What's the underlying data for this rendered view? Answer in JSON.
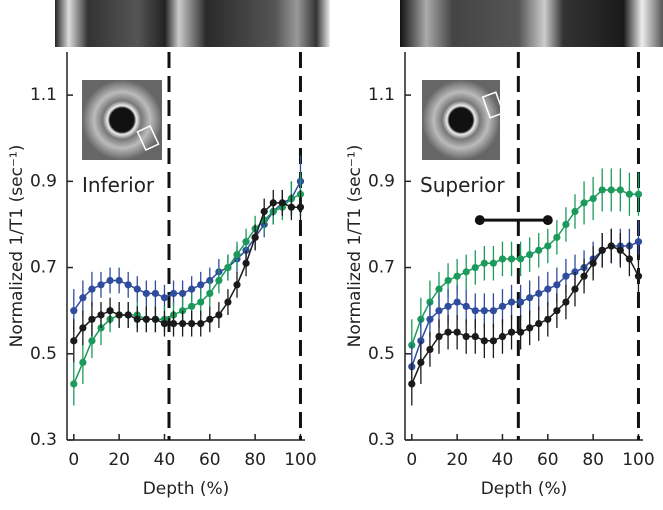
{
  "chart_data": [
    {
      "type": "line",
      "annotation": "Inferior",
      "xlabel": "Depth (%)",
      "ylabel": "Normalized 1/T1 (sec⁻¹)",
      "x": [
        0,
        4,
        8,
        12,
        16,
        20,
        24,
        28,
        32,
        36,
        40,
        44,
        48,
        52,
        56,
        60,
        64,
        68,
        72,
        76,
        80,
        84,
        88,
        92,
        96,
        100
      ],
      "xlim": [
        -3,
        102
      ],
      "xticks": [
        0,
        20,
        40,
        60,
        80,
        100
      ],
      "ylim": [
        0.3,
        1.2
      ],
      "yticks": [
        0.3,
        0.5,
        0.7,
        0.9,
        1.1
      ],
      "vlines": [
        42,
        100
      ],
      "series": [
        {
          "color": "#2f4b9c",
          "values": [
            0.6,
            0.63,
            0.65,
            0.66,
            0.67,
            0.67,
            0.66,
            0.65,
            0.64,
            0.64,
            0.63,
            0.64,
            0.64,
            0.65,
            0.66,
            0.67,
            0.69,
            0.7,
            0.72,
            0.74,
            0.77,
            0.8,
            0.83,
            0.85,
            0.86,
            0.9
          ],
          "errors": [
            0.05,
            0.04,
            0.04,
            0.03,
            0.03,
            0.03,
            0.03,
            0.03,
            0.03,
            0.03,
            0.03,
            0.03,
            0.03,
            0.03,
            0.03,
            0.03,
            0.03,
            0.03,
            0.03,
            0.03,
            0.03,
            0.03,
            0.03,
            0.03,
            0.04,
            0.06
          ]
        },
        {
          "color": "#1c9a5b",
          "values": [
            0.43,
            0.48,
            0.53,
            0.56,
            0.58,
            0.59,
            0.59,
            0.59,
            0.58,
            0.58,
            0.58,
            0.59,
            0.6,
            0.61,
            0.62,
            0.64,
            0.67,
            0.7,
            0.73,
            0.76,
            0.79,
            0.81,
            0.83,
            0.84,
            0.86,
            0.87
          ],
          "errors": [
            0.05,
            0.05,
            0.04,
            0.04,
            0.03,
            0.03,
            0.03,
            0.03,
            0.03,
            0.03,
            0.03,
            0.03,
            0.03,
            0.03,
            0.03,
            0.03,
            0.03,
            0.03,
            0.03,
            0.03,
            0.03,
            0.03,
            0.03,
            0.03,
            0.04,
            0.05
          ]
        },
        {
          "color": "#1a1a1a",
          "values": [
            0.53,
            0.56,
            0.58,
            0.59,
            0.6,
            0.59,
            0.59,
            0.58,
            0.58,
            0.58,
            0.57,
            0.57,
            0.57,
            0.57,
            0.57,
            0.58,
            0.59,
            0.62,
            0.66,
            0.71,
            0.77,
            0.83,
            0.85,
            0.85,
            0.84,
            0.84
          ],
          "errors": [
            0.05,
            0.04,
            0.04,
            0.03,
            0.03,
            0.03,
            0.03,
            0.03,
            0.03,
            0.03,
            0.03,
            0.03,
            0.03,
            0.03,
            0.03,
            0.03,
            0.03,
            0.03,
            0.03,
            0.03,
            0.03,
            0.03,
            0.03,
            0.03,
            0.03,
            0.04
          ]
        }
      ]
    },
    {
      "type": "line",
      "annotation": "Superior",
      "xlabel": "Depth (%)",
      "ylabel": "Normalized 1/T1 (sec⁻¹)",
      "x": [
        0,
        4,
        8,
        12,
        16,
        20,
        24,
        28,
        32,
        36,
        40,
        44,
        48,
        52,
        56,
        60,
        64,
        68,
        72,
        76,
        80,
        84,
        88,
        92,
        96,
        100
      ],
      "xlim": [
        -3,
        102
      ],
      "xticks": [
        0,
        20,
        40,
        60,
        80,
        100
      ],
      "ylim": [
        0.3,
        1.2
      ],
      "yticks": [
        0.3,
        0.5,
        0.7,
        0.9,
        1.1
      ],
      "vlines": [
        47,
        100
      ],
      "bar": {
        "x": [
          30,
          60
        ],
        "y": 0.81
      },
      "series": [
        {
          "color": "#1c9a5b",
          "values": [
            0.52,
            0.58,
            0.62,
            0.65,
            0.67,
            0.68,
            0.69,
            0.7,
            0.71,
            0.71,
            0.72,
            0.72,
            0.72,
            0.73,
            0.74,
            0.75,
            0.77,
            0.8,
            0.83,
            0.85,
            0.86,
            0.88,
            0.88,
            0.88,
            0.87,
            0.87
          ],
          "errors": [
            0.06,
            0.05,
            0.05,
            0.04,
            0.04,
            0.04,
            0.04,
            0.04,
            0.04,
            0.04,
            0.04,
            0.04,
            0.04,
            0.04,
            0.04,
            0.04,
            0.04,
            0.04,
            0.04,
            0.05,
            0.05,
            0.05,
            0.05,
            0.05,
            0.05,
            0.05
          ]
        },
        {
          "color": "#2f4b9c",
          "values": [
            0.47,
            0.53,
            0.58,
            0.6,
            0.61,
            0.62,
            0.61,
            0.6,
            0.6,
            0.6,
            0.61,
            0.62,
            0.62,
            0.63,
            0.64,
            0.65,
            0.66,
            0.68,
            0.69,
            0.7,
            0.72,
            0.74,
            0.75,
            0.75,
            0.75,
            0.76
          ],
          "errors": [
            0.05,
            0.05,
            0.04,
            0.04,
            0.04,
            0.04,
            0.04,
            0.04,
            0.04,
            0.04,
            0.04,
            0.04,
            0.04,
            0.04,
            0.04,
            0.04,
            0.04,
            0.04,
            0.04,
            0.04,
            0.04,
            0.04,
            0.04,
            0.04,
            0.04,
            0.05
          ]
        },
        {
          "color": "#1a1a1a",
          "values": [
            0.43,
            0.48,
            0.51,
            0.54,
            0.55,
            0.55,
            0.54,
            0.54,
            0.53,
            0.53,
            0.54,
            0.55,
            0.55,
            0.56,
            0.57,
            0.58,
            0.6,
            0.62,
            0.65,
            0.68,
            0.71,
            0.74,
            0.75,
            0.74,
            0.72,
            0.68
          ],
          "errors": [
            0.05,
            0.05,
            0.04,
            0.04,
            0.04,
            0.04,
            0.04,
            0.04,
            0.04,
            0.04,
            0.04,
            0.04,
            0.04,
            0.04,
            0.04,
            0.04,
            0.04,
            0.04,
            0.04,
            0.04,
            0.04,
            0.04,
            0.04,
            0.04,
            0.04,
            0.05
          ]
        }
      ]
    }
  ]
}
